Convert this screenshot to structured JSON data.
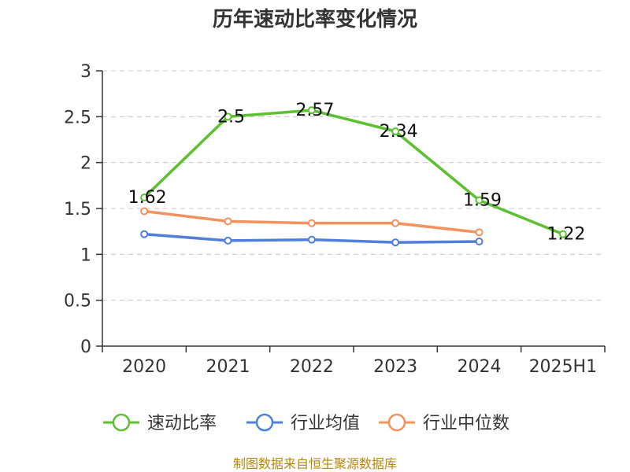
{
  "chart_data": {
    "type": "line",
    "title": "历年速动比率变化情况",
    "categories": [
      "2020",
      "2021",
      "2022",
      "2023",
      "2024",
      "2025H1"
    ],
    "yticks": [
      "0",
      "0.5",
      "1",
      "1.5",
      "2",
      "2.5",
      "3"
    ],
    "ylim": [
      0,
      3
    ],
    "grid": true,
    "legend_position": "bottom",
    "series": [
      {
        "name": "速动比率",
        "color": "#5cc12e",
        "values": [
          1.62,
          2.5,
          2.57,
          2.34,
          1.59,
          1.22
        ],
        "labels": [
          "1.62",
          "2.5",
          "2.57",
          "2.34",
          "1.59",
          "1.22"
        ]
      },
      {
        "name": "行业均值",
        "color": "#4e7fdc",
        "values": [
          1.22,
          1.15,
          1.16,
          1.13,
          1.14,
          null
        ]
      },
      {
        "name": "行业中位数",
        "color": "#f4925f",
        "values": [
          1.47,
          1.36,
          1.34,
          1.34,
          1.24,
          null
        ]
      }
    ],
    "source": "制图数据来自恒生聚源数据库"
  }
}
